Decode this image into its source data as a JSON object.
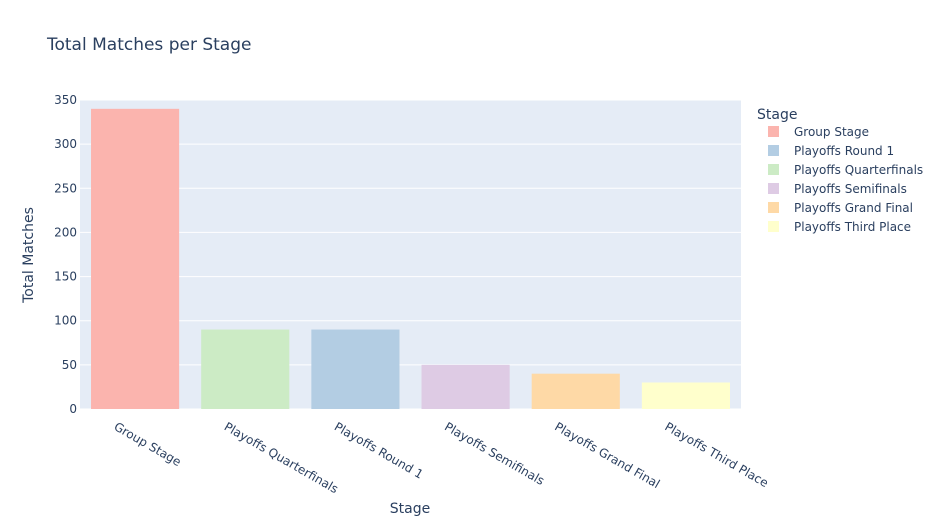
{
  "chart_data": {
    "type": "bar",
    "title": "Total Matches per Stage",
    "xlabel": "Stage",
    "ylabel": "Total Matches",
    "ylim": [
      0,
      350
    ],
    "yticks": [
      0,
      50,
      100,
      150,
      200,
      250,
      300,
      350
    ],
    "grid": true,
    "legend_title": "Stage",
    "legend_position": "right",
    "categories": [
      "Group Stage",
      "Playoffs Quarterfinals",
      "Playoffs Round 1",
      "Playoffs Semifinals",
      "Playoffs Grand Final",
      "Playoffs Third Place"
    ],
    "values": [
      340,
      90,
      90,
      50,
      40,
      30
    ],
    "colors": [
      "#FBB4AE",
      "#CCEBC5",
      "#B3CDE3",
      "#DECBE4",
      "#FED9A6",
      "#FFFFCC"
    ],
    "legend": [
      {
        "name": "Group Stage",
        "color": "#FBB4AE"
      },
      {
        "name": "Playoffs Round 1",
        "color": "#B3CDE3"
      },
      {
        "name": "Playoffs Quarterfinals",
        "color": "#CCEBC5"
      },
      {
        "name": "Playoffs Semifinals",
        "color": "#DECBE4"
      },
      {
        "name": "Playoffs Grand Final",
        "color": "#FED9A6"
      },
      {
        "name": "Playoffs Third Place",
        "color": "#FFFFCC"
      }
    ],
    "plot_background": "#E5ECF6"
  }
}
